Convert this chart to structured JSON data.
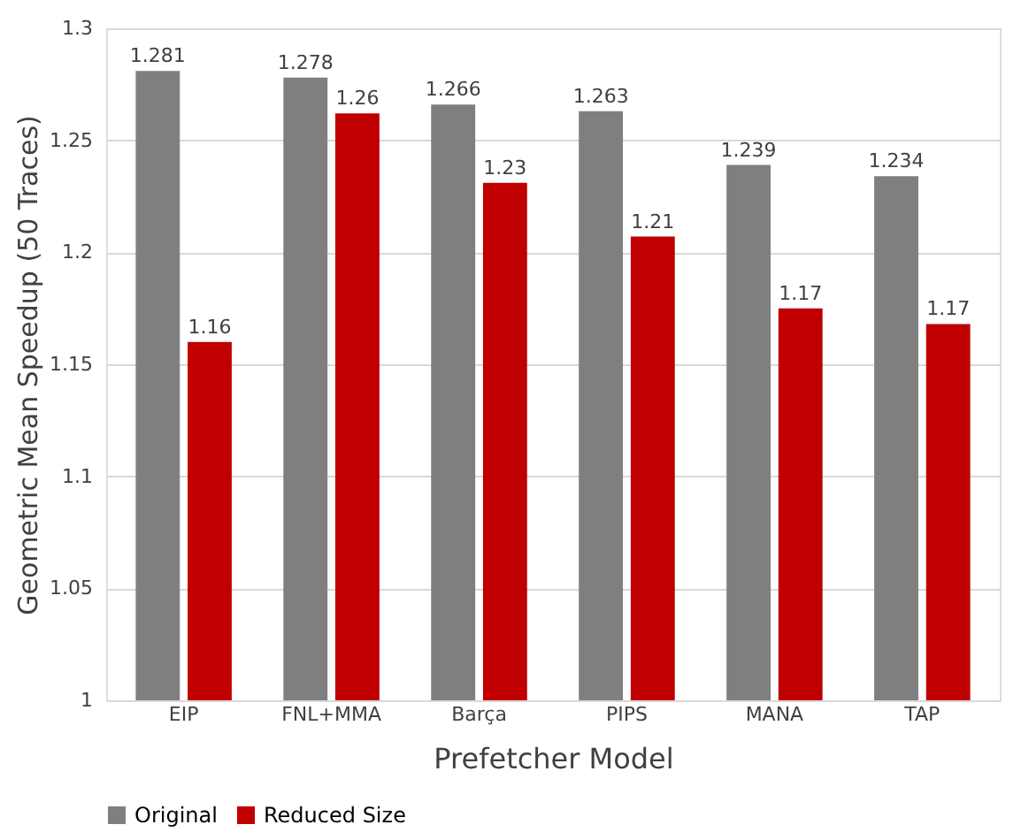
{
  "chart_data": {
    "type": "bar",
    "xlabel": "Prefetcher Model",
    "ylabel": "Geometric Mean Speedup (50 Traces)",
    "categories": [
      "EIP",
      "FNL+MMA",
      "Barça",
      "PIPS",
      "MANA",
      "TAP"
    ],
    "series": [
      {
        "name": "Original",
        "color": "#7f7f7f",
        "values": [
          1.281,
          1.278,
          1.266,
          1.263,
          1.239,
          1.234
        ],
        "value_labels": [
          "1.281",
          "1.278",
          "1.266",
          "1.263",
          "1.239",
          "1.234"
        ]
      },
      {
        "name": "Reduced Size",
        "color": "#c00000",
        "values": [
          1.16,
          1.262,
          1.231,
          1.207,
          1.175,
          1.168
        ],
        "value_labels": [
          "1.16",
          "1.26",
          "1.23",
          "1.21",
          "1.17",
          "1.17"
        ]
      }
    ],
    "ylim": [
      1,
      1.3
    ],
    "yticks": [
      1,
      1.05,
      1.1,
      1.15,
      1.2,
      1.25,
      1.3
    ],
    "grid": "y",
    "legend": "bottom"
  }
}
